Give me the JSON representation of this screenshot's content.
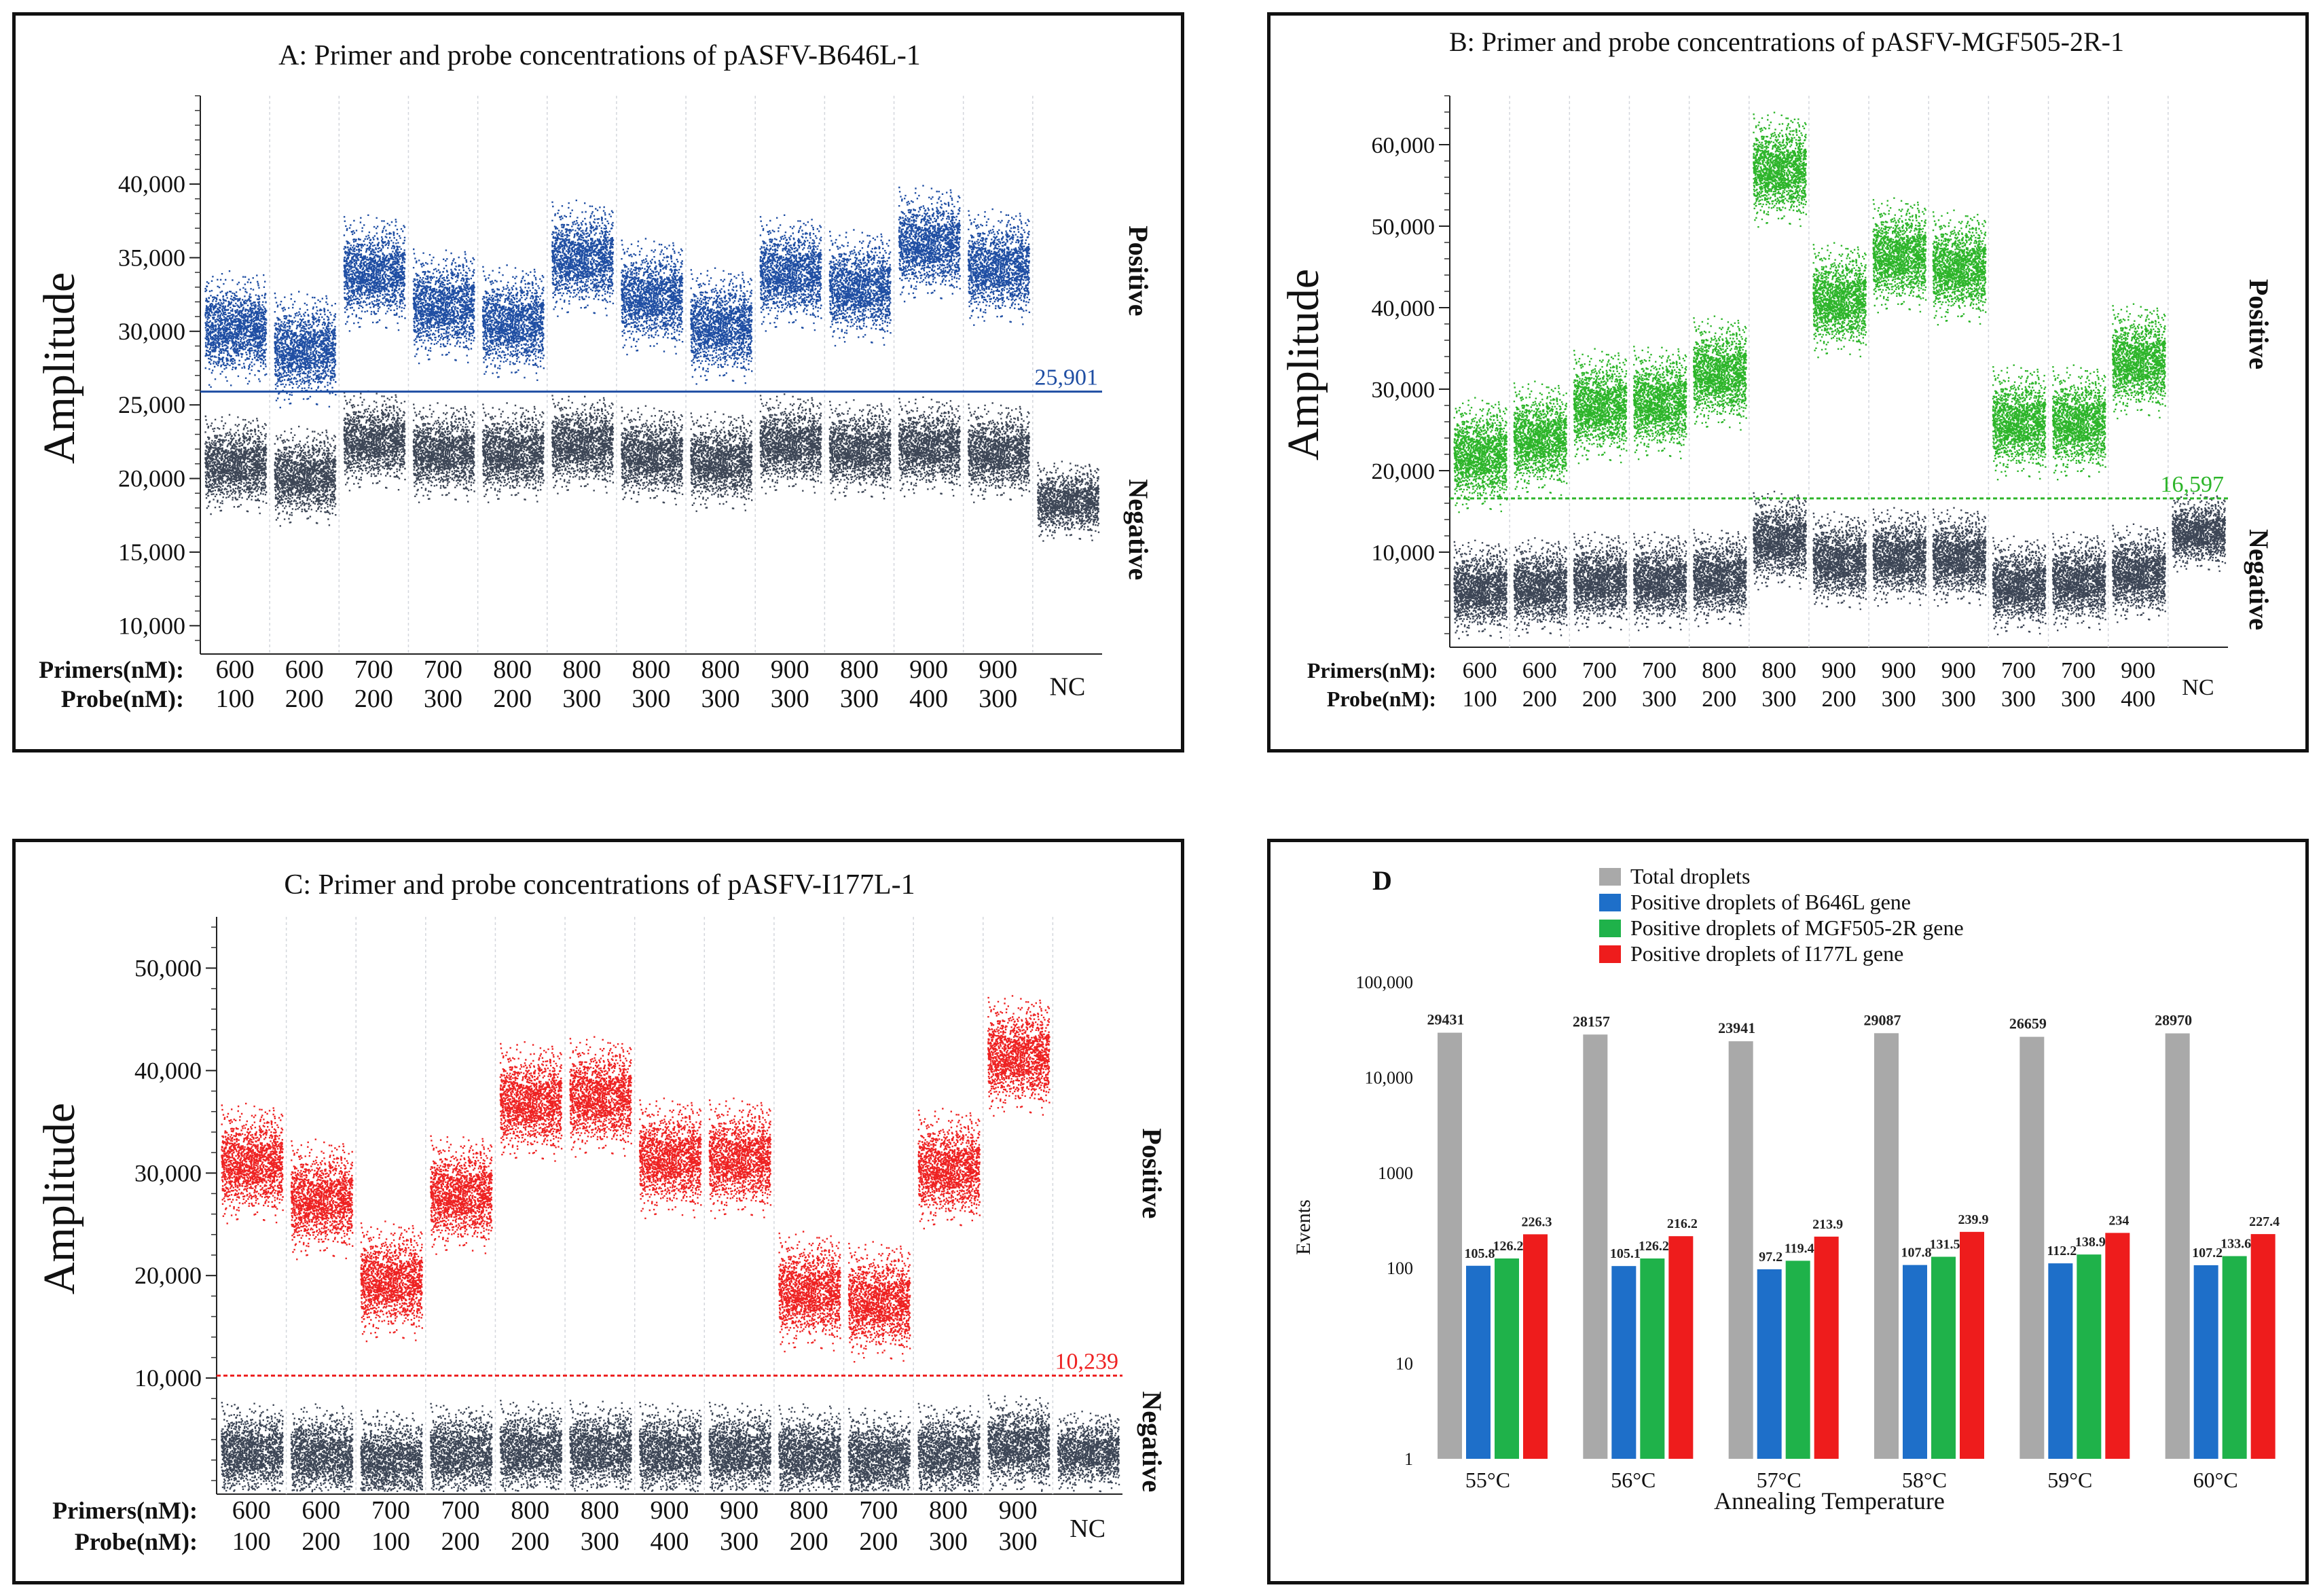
{
  "panels": [
    {
      "id": "A",
      "type": "scatter",
      "title": "A: Primer and probe concentrations of pASFV-B646L-1",
      "ylabel": "Amplitude",
      "ylim": [
        9000,
        46000
      ],
      "yticks": [
        10000,
        15000,
        20000,
        25000,
        30000,
        35000,
        40000
      ],
      "ytick_labels": [
        "10,000",
        "15,000",
        "20,000",
        "25,000",
        "30,000",
        "35,000",
        "40,000"
      ],
      "threshold": 25901,
      "threshold_label": "25,901",
      "color": "#1f4ea3",
      "neg_color": "#3d4656",
      "positive_label": "Positive",
      "negative_label": "Negative",
      "row1_label": "Primers(nM):",
      "row2_label": "Probe(nM):",
      "nc_label": "NC",
      "primers": [
        "600",
        "600",
        "700",
        "700",
        "800",
        "800",
        "800",
        "800",
        "900",
        "800",
        "900",
        "900"
      ],
      "probes": [
        "100",
        "200",
        "200",
        "300",
        "200",
        "300",
        "300",
        "300",
        "300",
        "300",
        "400",
        "300"
      ],
      "positive_centers": [
        30200,
        28800,
        34000,
        31800,
        30600,
        35000,
        32400,
        30400,
        34000,
        33000,
        36000,
        34400
      ],
      "negative_centers": [
        21000,
        20200,
        22600,
        21800,
        21800,
        22400,
        21600,
        21200,
        22400,
        22000,
        22200,
        21800
      ],
      "nc_center": 18500
    },
    {
      "id": "B",
      "type": "scatter",
      "title": "B: Primer and probe concentrations of pASFV-MGF505-2R-1",
      "ylabel": "Amplitude",
      "ylim": [
        0,
        66000
      ],
      "yticks": [
        10000,
        20000,
        30000,
        40000,
        50000,
        60000
      ],
      "ytick_labels": [
        "10,000",
        "20,000",
        "30,000",
        "40,000",
        "50,000",
        "60,000"
      ],
      "threshold": 16597,
      "threshold_label": "16,597",
      "color": "#2db52a",
      "neg_color": "#3d4656",
      "positive_label": "Positive",
      "negative_label": "Negative",
      "row1_label": "Primers(nM):",
      "row2_label": "Probe(nM):",
      "nc_label": "NC",
      "primers": [
        "600",
        "600",
        "700",
        "700",
        "800",
        "800",
        "900",
        "900",
        "900",
        "700",
        "700",
        "900"
      ],
      "probes": [
        "100",
        "200",
        "200",
        "300",
        "200",
        "300",
        "200",
        "300",
        "300",
        "300",
        "300",
        "400"
      ],
      "positive_centers": [
        22000,
        24000,
        28000,
        28500,
        32000,
        57000,
        41000,
        46500,
        45000,
        26000,
        26000,
        33500
      ],
      "negative_centers": [
        5500,
        5800,
        6500,
        6500,
        7000,
        11500,
        9000,
        9500,
        9500,
        6000,
        6500,
        7500
      ],
      "nc_center": 12500
    },
    {
      "id": "C",
      "type": "scatter",
      "title": "C: Primer and probe concentrations of pASFV-I177L-1",
      "ylabel": "Amplitude",
      "ylim": [
        0,
        55000
      ],
      "yticks": [
        10000,
        20000,
        30000,
        40000,
        50000
      ],
      "ytick_labels": [
        "10,000",
        "20,000",
        "30,000",
        "40,000",
        "50,000"
      ],
      "threshold": 10239,
      "threshold_label": "10,239",
      "color": "#ee2222",
      "neg_color": "#3d4656",
      "positive_label": "Positive",
      "negative_label": "Negative",
      "row1_label": "Primers(nM):",
      "row2_label": "Probe(nM):",
      "nc_label": "NC",
      "primers": [
        "600",
        "600",
        "700",
        "700",
        "800",
        "800",
        "900",
        "900",
        "800",
        "700",
        "800",
        "900"
      ],
      "probes": [
        "100",
        "200",
        "100",
        "200",
        "200",
        "300",
        "400",
        "300",
        "200",
        "200",
        "300",
        "300"
      ],
      "positive_centers": [
        31000,
        27500,
        19500,
        28000,
        37000,
        37500,
        31500,
        31500,
        18500,
        17500,
        30500,
        41500
      ],
      "negative_centers": [
        2800,
        2500,
        2000,
        2700,
        3000,
        3000,
        2800,
        2800,
        2500,
        2200,
        2700,
        3500
      ],
      "nc_center": 2800
    }
  ],
  "chart_data": {
    "type": "bar",
    "title": "D",
    "xlabel": "Annealing Temperature",
    "ylabel": "Events",
    "yscale": "log",
    "ylim": [
      1,
      100000
    ],
    "yticks": [
      1,
      10,
      100,
      1000,
      10000,
      100000
    ],
    "ytick_labels": [
      "1",
      "10",
      "100",
      "1000",
      "10,000",
      "100,000"
    ],
    "categories": [
      "55°C",
      "56°C",
      "57°C",
      "58°C",
      "59°C",
      "60°C"
    ],
    "series": [
      {
        "name": "Total droplets",
        "color": "#a9a9a9",
        "values": [
          29431,
          28157,
          23941,
          29087,
          26659,
          28970
        ],
        "labels": [
          "29431",
          "28157",
          "23941",
          "29087",
          "26659",
          "28970"
        ]
      },
      {
        "name": "Positive droplets of B646L gene",
        "color": "#1e6fc9",
        "values": [
          105.8,
          105.1,
          97.2,
          107.8,
          112.2,
          107.2
        ],
        "labels": [
          "105.8",
          "105.1",
          "97.2",
          "107.8",
          "112.2",
          "107.2"
        ]
      },
      {
        "name": "Positive droplets of MGF505-2R gene",
        "color": "#1fb24a",
        "values": [
          126.2,
          126.2,
          119.4,
          131.5,
          138.9,
          133.6
        ],
        "labels": [
          "126.2",
          "126.2",
          "119.4",
          "131.5",
          "138.9",
          "133.6"
        ]
      },
      {
        "name": "Positive droplets of I177L gene",
        "color": "#ee1c1c",
        "values": [
          226.3,
          216.2,
          213.9,
          239.9,
          234,
          227.4
        ],
        "labels": [
          "226.3",
          "216.2",
          "213.9",
          "239.9",
          "234",
          "227.4"
        ]
      }
    ]
  }
}
